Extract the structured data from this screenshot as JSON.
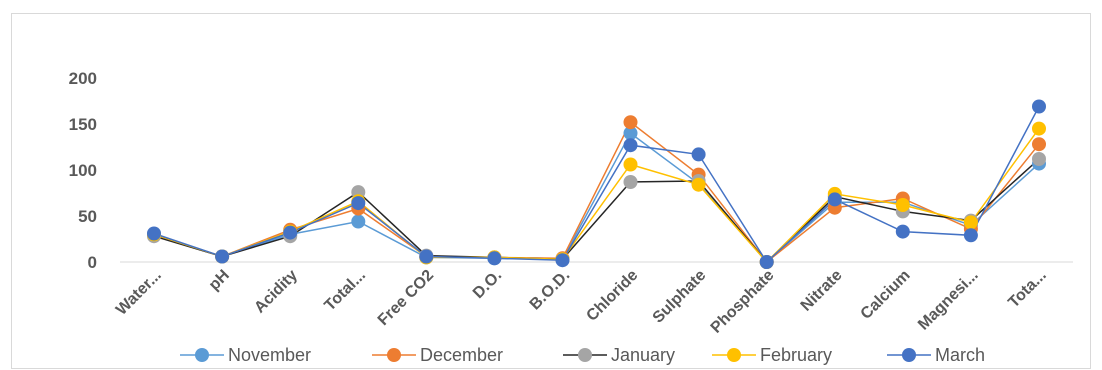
{
  "chart_data": {
    "type": "line",
    "categories": [
      "Water...",
      "pH",
      "Acidity",
      "Total...",
      "Free CO2",
      "D.O.",
      "B.O.D.",
      "Chloride",
      "Sulphate",
      "Phosphate",
      "Nitrate",
      "Calcium",
      "Magnesi...",
      "Tota..."
    ],
    "y_ticks": [
      "0",
      "50",
      "100",
      "150",
      "200"
    ],
    "ylim": [
      0,
      200
    ],
    "grid": false,
    "legend_position": "bottom",
    "series": [
      {
        "name": "November",
        "color": "#5b9bd5",
        "values": [
          30,
          6,
          30,
          44,
          5,
          4,
          3,
          140,
          85,
          0,
          65,
          65,
          40,
          107
        ]
      },
      {
        "name": "December",
        "color": "#ed7d31",
        "values": [
          29,
          6,
          35,
          58,
          6,
          5,
          4,
          152,
          95,
          0,
          59,
          69,
          36,
          128
        ]
      },
      {
        "name": "January",
        "color": "#a5a5a5",
        "line_color": "#262626",
        "values": [
          28,
          6,
          28,
          76,
          7,
          5,
          3,
          87,
          88,
          0,
          71,
          55,
          45,
          112
        ]
      },
      {
        "name": "February",
        "color": "#ffc000",
        "values": [
          30,
          6,
          33,
          66,
          5,
          5,
          3,
          106,
          84,
          0,
          74,
          62,
          43,
          145
        ]
      },
      {
        "name": "March",
        "color": "#4472c4",
        "values": [
          31,
          6,
          32,
          64,
          6,
          4,
          2,
          127,
          117,
          0,
          68,
          33,
          29,
          169
        ]
      }
    ]
  }
}
